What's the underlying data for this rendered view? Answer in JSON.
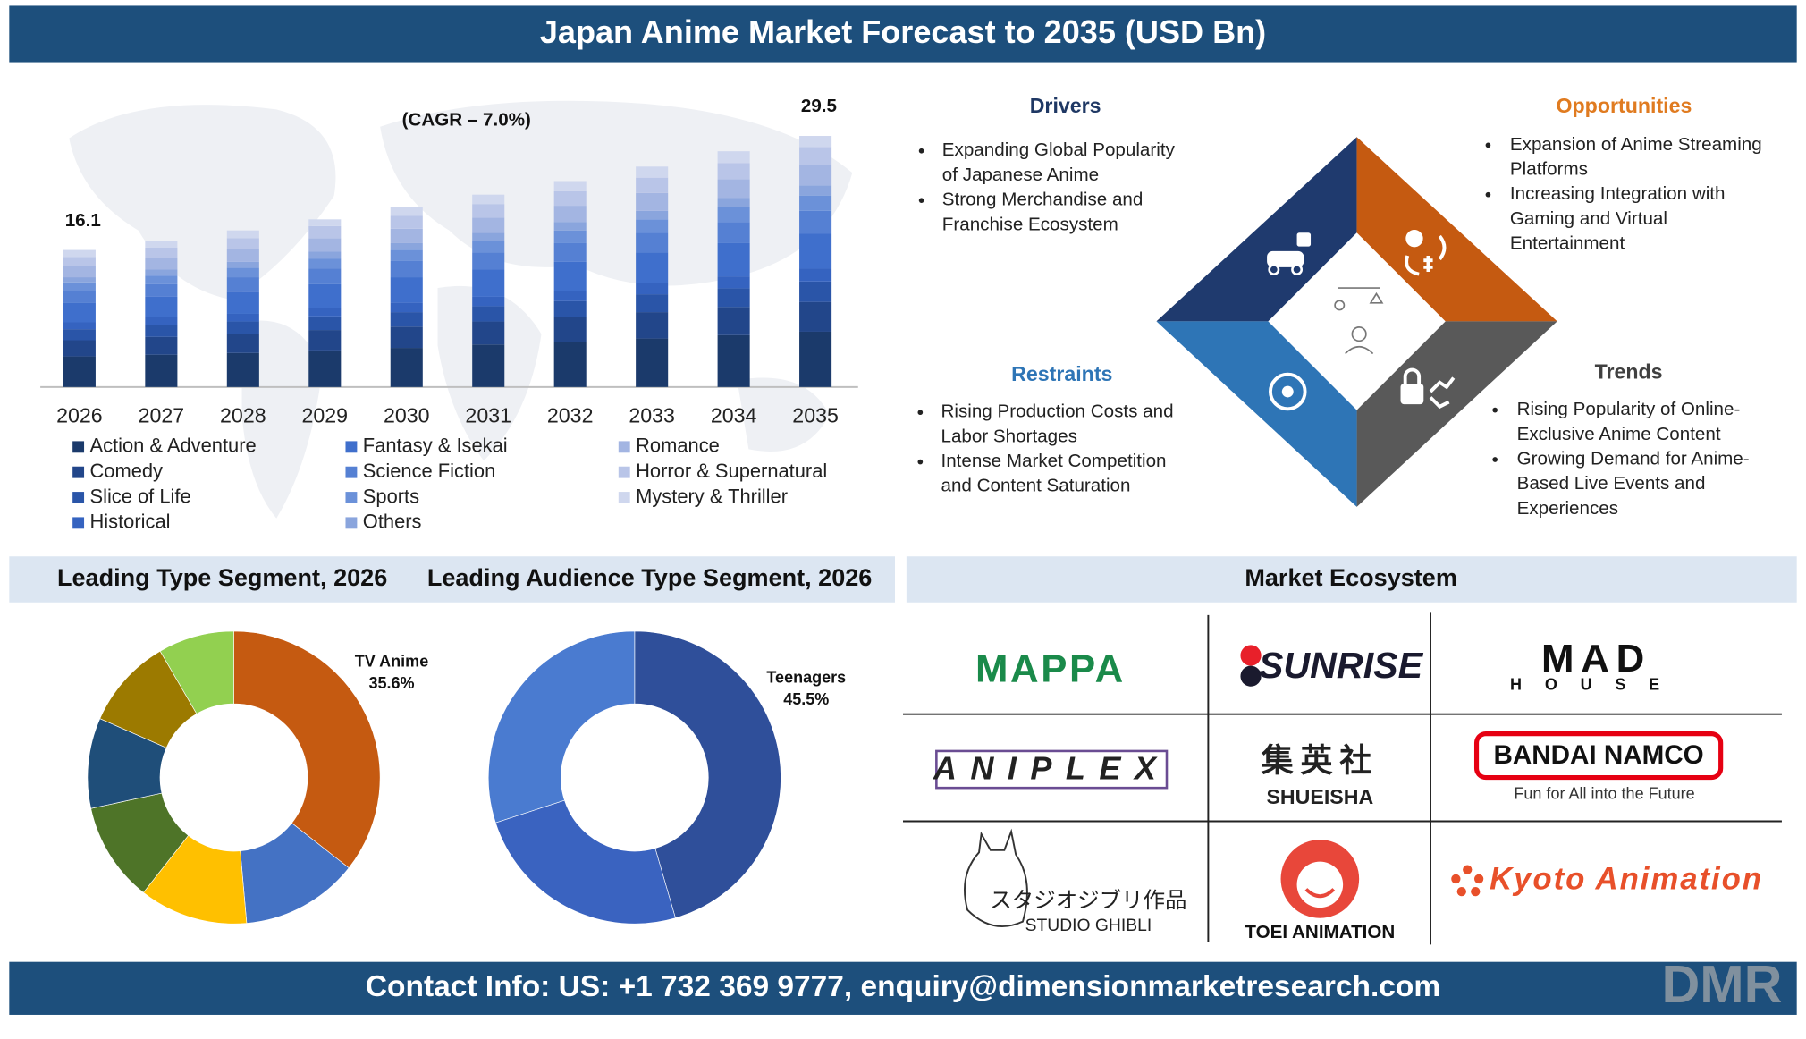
{
  "header": {
    "title": "Japan Anime Market Forecast to 2035 (USD Bn)"
  },
  "chart_data": [
    {
      "type": "bar",
      "stacked": true,
      "annotation": "(CAGR – 7.0%)",
      "categories": [
        "2026",
        "2027",
        "2028",
        "2029",
        "2030",
        "2031",
        "2032",
        "2033",
        "2034",
        "2035"
      ],
      "totals": [
        16.1,
        null,
        null,
        null,
        null,
        null,
        null,
        null,
        null,
        29.5
      ],
      "series": [
        {
          "name": "Action & Adventure",
          "color": "#1b3a6b",
          "values": [
            3.6,
            3.8,
            4.0,
            4.3,
            4.6,
            5.0,
            5.3,
            5.7,
            6.1,
            6.5
          ]
        },
        {
          "name": "Comedy",
          "color": "#22468a",
          "values": [
            1.9,
            2.1,
            2.2,
            2.4,
            2.5,
            2.7,
            2.9,
            3.1,
            3.3,
            3.5
          ]
        },
        {
          "name": "Slice of Life",
          "color": "#2a55a8",
          "values": [
            1.3,
            1.4,
            1.5,
            1.6,
            1.7,
            1.8,
            1.9,
            2.1,
            2.2,
            2.4
          ]
        },
        {
          "name": "Historical",
          "color": "#3563c0",
          "values": [
            0.8,
            0.9,
            0.9,
            1.0,
            1.1,
            1.1,
            1.2,
            1.3,
            1.4,
            1.5
          ]
        },
        {
          "name": "Fantasy & Isekai",
          "color": "#3f6fcc",
          "values": [
            2.3,
            2.4,
            2.6,
            2.8,
            3.0,
            3.2,
            3.4,
            3.6,
            3.9,
            4.1
          ]
        },
        {
          "name": "Science Fiction",
          "color": "#5580d3",
          "values": [
            1.4,
            1.5,
            1.7,
            1.8,
            1.9,
            2.0,
            2.2,
            2.3,
            2.5,
            2.7
          ]
        },
        {
          "name": "Sports",
          "color": "#6b91d9",
          "values": [
            1.0,
            1.0,
            1.1,
            1.2,
            1.3,
            1.4,
            1.5,
            1.6,
            1.7,
            1.8
          ]
        },
        {
          "name": "Others",
          "color": "#8aa5dd",
          "values": [
            0.6,
            0.7,
            0.7,
            0.8,
            0.8,
            0.9,
            1.0,
            1.0,
            1.1,
            1.2
          ]
        },
        {
          "name": "Romance",
          "color": "#a3b5e2",
          "values": [
            1.3,
            1.4,
            1.5,
            1.6,
            1.7,
            1.8,
            1.9,
            2.1,
            2.2,
            2.4
          ]
        },
        {
          "name": "Horror & Supernatural",
          "color": "#b9c5e8",
          "values": [
            1.1,
            1.2,
            1.3,
            1.4,
            1.5,
            1.6,
            1.7,
            1.8,
            1.9,
            2.1
          ]
        },
        {
          "name": "Mystery & Thriller",
          "color": "#cfd7ee",
          "values": [
            0.8,
            0.8,
            0.9,
            0.8,
            1.0,
            1.1,
            1.2,
            1.3,
            1.4,
            1.3
          ]
        }
      ]
    },
    {
      "type": "donut",
      "title": "Leading Type Segment, 2026",
      "categories": [
        "TV Anime",
        null,
        null,
        null,
        null,
        null,
        null
      ],
      "values": [
        35.6,
        13,
        12,
        11,
        10,
        10,
        8.4
      ],
      "value_labels": [
        "35.6%",
        null,
        null,
        null,
        null,
        null,
        null
      ],
      "colors": [
        "#c55a11",
        "#4472c4",
        "#ffc000",
        "#4e7428",
        "#1f4e79",
        "#9c7a00",
        "#92d050"
      ]
    },
    {
      "type": "donut",
      "title": "Leading Audience Type Segment, 2026",
      "categories": [
        "Teenagers",
        null,
        null
      ],
      "values": [
        45.5,
        24.5,
        30.0
      ],
      "value_labels": [
        "45.5%",
        null,
        null
      ],
      "colors": [
        "#2f4f9a",
        "#3a63c0",
        "#4a7bd0"
      ]
    }
  ],
  "factors": {
    "drivers": {
      "title": "Drivers",
      "color": "#1f3864",
      "bullets": [
        [
          "Expanding Global Popularity",
          "of Japanese Anime"
        ],
        [
          "Strong Merchandise and",
          "Franchise Ecosystem"
        ]
      ]
    },
    "opportunities": {
      "title": "Opportunities",
      "color": "#e07b20",
      "bullets": [
        [
          "Expansion of Anime Streaming",
          "Platforms"
        ],
        [
          "Increasing Integration with",
          "Gaming and Virtual",
          "Entertainment"
        ]
      ]
    },
    "restraints": {
      "title": "Restraints",
      "color": "#2e75b6",
      "bullets": [
        [
          "Rising Production Costs and",
          "Labor Shortages"
        ],
        [
          "Intense Market Competition",
          "and Content Saturation"
        ]
      ]
    },
    "trends": {
      "title": "Trends",
      "color": "#404040",
      "bullets": [
        [
          "Rising Popularity of Online-",
          "Exclusive Anime Content"
        ],
        [
          "Growing Demand for Anime-",
          "Based Live Events and",
          "Experiences"
        ]
      ]
    }
  },
  "ecosystem": {
    "title": "Market Ecosystem",
    "logos": [
      {
        "name": "MAPPA"
      },
      {
        "name": "SUNRISE"
      },
      {
        "name": "MAD",
        "tagline": "HOUSE"
      },
      {
        "name": "ANIPLEX"
      },
      {
        "name": "集英社",
        "tagline": "SHUEISHA"
      },
      {
        "name": "BANDAI NAMCO",
        "tagline": "Fun for All into the Future"
      },
      {
        "name": "スタジオジブリ作品",
        "tagline": "STUDIO GHIBLI"
      },
      {
        "name": "TOEI ANIMATION"
      },
      {
        "name": "Kyoto Animation"
      }
    ]
  },
  "footer": {
    "contact": "Contact Info: US: +1 732 369 9777, enquiry@dimensionmarketresearch.com",
    "logo": "DMR"
  }
}
